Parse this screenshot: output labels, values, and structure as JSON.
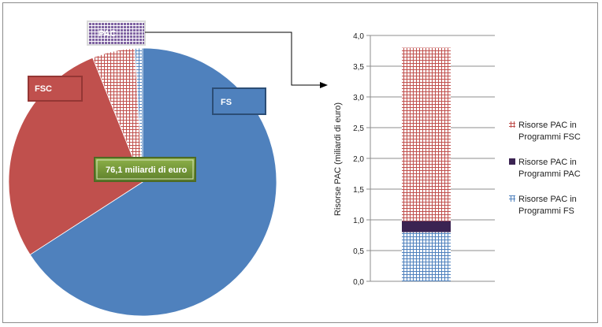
{
  "chart_data": [
    {
      "type": "pie",
      "total_label": "76,1 miliardi di euro",
      "slices": [
        {
          "name": "FS",
          "value": 63.9,
          "color": "#4f81bd"
        },
        {
          "name": "FSC",
          "value": 27.2,
          "color": "#c0504d"
        },
        {
          "name": "PAC",
          "value": 5.0,
          "color": "#c0504d",
          "pattern": "grid-red"
        },
        {
          "name": "PAC",
          "value": 0.9,
          "color": "#4f81bd",
          "pattern": "grid-blue"
        }
      ],
      "labels": [
        {
          "text": "PAC",
          "color": "#8064a2"
        },
        {
          "text": "FSC",
          "color": "#c0504d"
        },
        {
          "text": "FS",
          "color": "#4f81bd"
        }
      ]
    },
    {
      "type": "bar",
      "stacked": true,
      "ylabel": "Risorse PAC (miliardi di euro)",
      "ylim": [
        0,
        4.0
      ],
      "yticks": [
        "0,0",
        "0,5",
        "1,0",
        "1,5",
        "2,0",
        "2,5",
        "3,0",
        "3,5",
        "4,0"
      ],
      "grid": true,
      "legend_position": "right",
      "series": [
        {
          "name": "Risorse PAC in Programmi FS",
          "value": 0.8,
          "color": "#4f81bd",
          "pattern": "grid-blue"
        },
        {
          "name": "Risorse PAC in Programmi PAC",
          "value": 0.18,
          "color": "#3b2352",
          "pattern": "solid"
        },
        {
          "name": "Risorse PAC in Programmi FSC",
          "value": 2.82,
          "color": "#c0504d",
          "pattern": "grid-red"
        }
      ],
      "legend": [
        {
          "line1": "Risorse PAC in",
          "line2": "Programmi FSC",
          "series": 2
        },
        {
          "line1": "Risorse PAC in",
          "line2": "Programmi PAC",
          "series": 1
        },
        {
          "line1": "Risorse PAC in",
          "line2": "Programmi FS",
          "series": 0
        }
      ]
    }
  ]
}
